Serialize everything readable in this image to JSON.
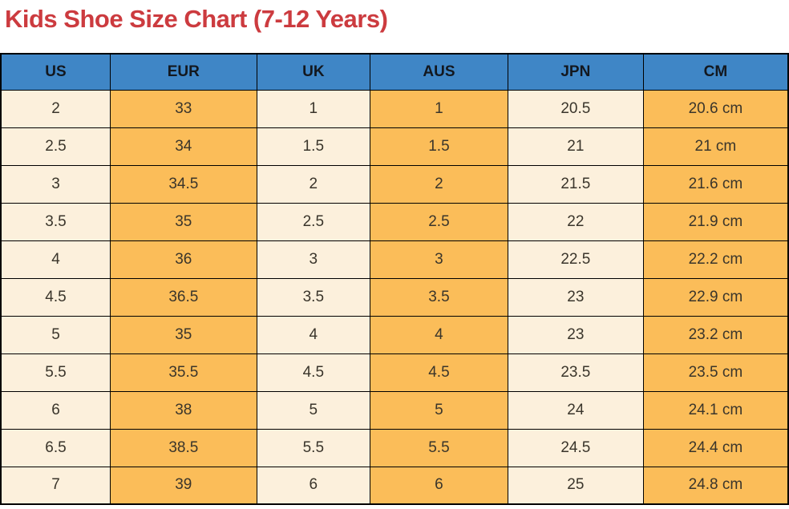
{
  "title": "Kids Shoe Size Chart (7-12 Years)",
  "colors": {
    "title_red": "#cc3b3f",
    "header_blue": "#3f86c6",
    "cell_cream": "#fcf0dc",
    "cell_orange": "#fbbd59",
    "grid_border": "#000000",
    "header_text": "#13181f",
    "cell_text": "#3a352b"
  },
  "chart_data": {
    "type": "table",
    "title": "Kids Shoe Size Chart (7-12 Years)",
    "columns": [
      "US",
      "EUR",
      "UK",
      "AUS",
      "JPN",
      "CM"
    ],
    "rows": [
      [
        "2",
        "33",
        "1",
        "1",
        "20.5",
        "20.6 cm"
      ],
      [
        "2.5",
        "34",
        "1.5",
        "1.5",
        "21",
        "21 cm"
      ],
      [
        "3",
        "34.5",
        "2",
        "2",
        "21.5",
        "21.6 cm"
      ],
      [
        "3.5",
        "35",
        "2.5",
        "2.5",
        "22",
        "21.9 cm"
      ],
      [
        "4",
        "36",
        "3",
        "3",
        "22.5",
        "22.2 cm"
      ],
      [
        "4.5",
        "36.5",
        "3.5",
        "3.5",
        "23",
        "22.9 cm"
      ],
      [
        "5",
        "35",
        "4",
        "4",
        "23",
        "23.2 cm"
      ],
      [
        "5.5",
        "35.5",
        "4.5",
        "4.5",
        "23.5",
        "23.5 cm"
      ],
      [
        "6",
        "38",
        "5",
        "5",
        "24",
        "24.1 cm"
      ],
      [
        "6.5",
        "38.5",
        "5.5",
        "5.5",
        "24.5",
        "24.4 cm"
      ],
      [
        "7",
        "39",
        "6",
        "6",
        "25",
        "24.8 cm"
      ]
    ],
    "layout": {
      "grid": true,
      "column_fill_pattern": [
        "cream",
        "orange",
        "cream",
        "orange",
        "cream",
        "orange"
      ]
    }
  }
}
